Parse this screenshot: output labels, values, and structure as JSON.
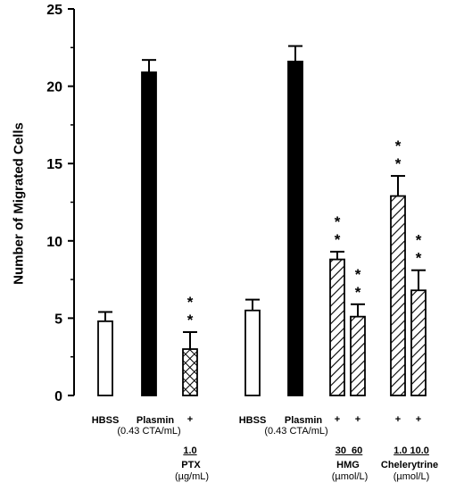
{
  "chart_data": {
    "type": "bar",
    "ylabel": "Number of Migrated Cells",
    "ylim": [
      0,
      25
    ],
    "yticks": [
      "0",
      "5",
      "10",
      "15",
      "20",
      "25"
    ],
    "bars": [
      {
        "value": 4.8,
        "error": 0.6,
        "pattern": "open",
        "significance": ""
      },
      {
        "value": 20.9,
        "error": 0.8,
        "pattern": "solid",
        "significance": ""
      },
      {
        "value": 3.0,
        "error": 1.1,
        "pattern": "crosshatch",
        "significance": "**"
      },
      {
        "value": 5.5,
        "error": 0.7,
        "pattern": "open",
        "significance": ""
      },
      {
        "value": 21.6,
        "error": 1.0,
        "pattern": "solid",
        "significance": ""
      },
      {
        "value": 8.8,
        "error": 0.5,
        "pattern": "hatch",
        "significance": "**"
      },
      {
        "value": 5.1,
        "error": 0.8,
        "pattern": "hatch",
        "significance": "**"
      },
      {
        "value": 12.9,
        "error": 1.3,
        "pattern": "hatch",
        "significance": "**"
      },
      {
        "value": 6.8,
        "error": 1.3,
        "pattern": "hatch",
        "significance": "**"
      }
    ]
  },
  "labels": {
    "hbss1": "HBSS",
    "plasmin1": "Plasmin",
    "plasmin1_conc": "(0.43 CTA/mL)",
    "plus_ptx": "+",
    "ptx_dose": "1.0",
    "ptx_name": "PTX",
    "ptx_unit": "(µg/mL)",
    "hbss2": "HBSS",
    "plasmin2": "Plasmin",
    "plasmin2_conc": "(0.43 CTA/mL)",
    "plus_hmg1": "+",
    "plus_hmg2": "+",
    "hmg_doses": "30  60",
    "hmg_name": "HMG",
    "hmg_unit": "(µmol/L)",
    "plus_che1": "+",
    "plus_che2": "+",
    "che_doses": "1.0 10.0",
    "che_name": "Chelerytrine",
    "che_unit": "(µmol/L)"
  }
}
